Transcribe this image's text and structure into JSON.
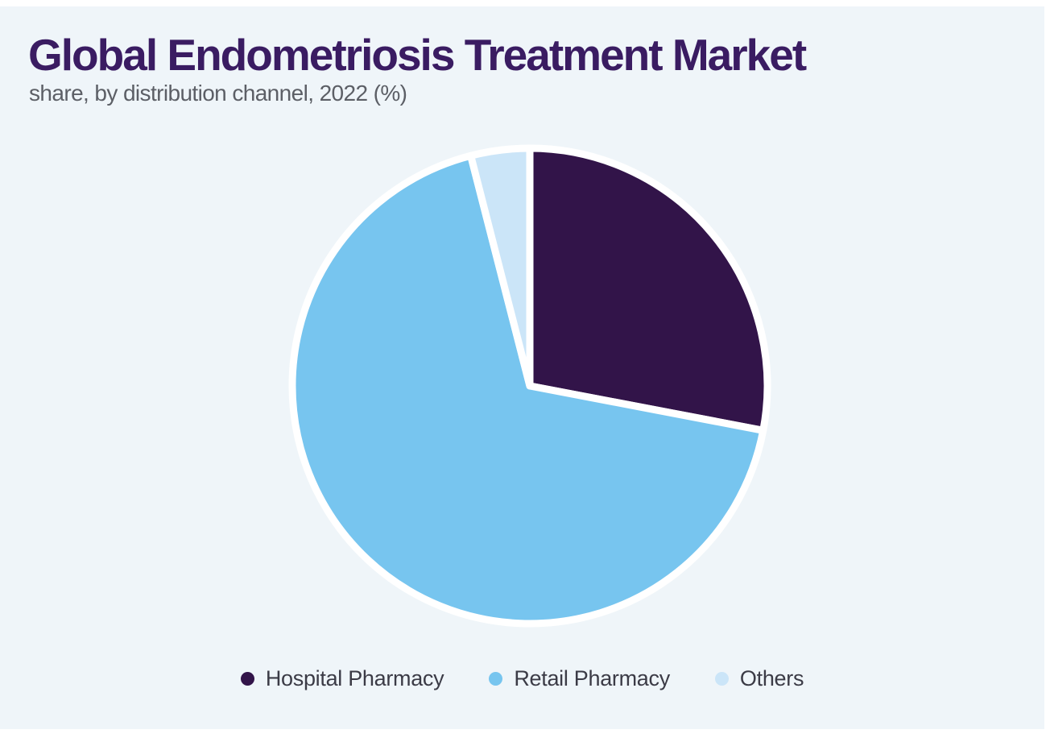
{
  "page": {
    "background": "#ffffff",
    "panel_background": "#eff5f9"
  },
  "header": {
    "title": "Global Endometriosis Treatment Market",
    "subtitle": "share, by distribution channel, 2022 (%)"
  },
  "chart_data": {
    "type": "pie",
    "title": "Global Endometriosis Treatment Market",
    "subtitle": "share, by distribution channel, 2022 (%)",
    "year": "2022",
    "unit": "%",
    "labels": [
      "Hospital Pharmacy",
      "Retail Pharmacy",
      "Others"
    ],
    "values": [
      28,
      68,
      4
    ],
    "colors": [
      "#321449",
      "#77c5ef",
      "#cbe5f8"
    ],
    "start_angle": "12-oclock",
    "direction": "clockwise",
    "slice_gap_color": "#ffffff",
    "legend_position": "bottom",
    "data_labels_shown": false
  },
  "legend": {
    "items": [
      {
        "label": "Hospital Pharmacy",
        "color": "#321449"
      },
      {
        "label": "Retail Pharmacy",
        "color": "#77c5ef"
      },
      {
        "label": "Others",
        "color": "#cbe5f8"
      }
    ]
  },
  "text_colors": {
    "title": "#3a1c62",
    "subtitle": "#5c5f66",
    "legend": "#3b3b46"
  }
}
